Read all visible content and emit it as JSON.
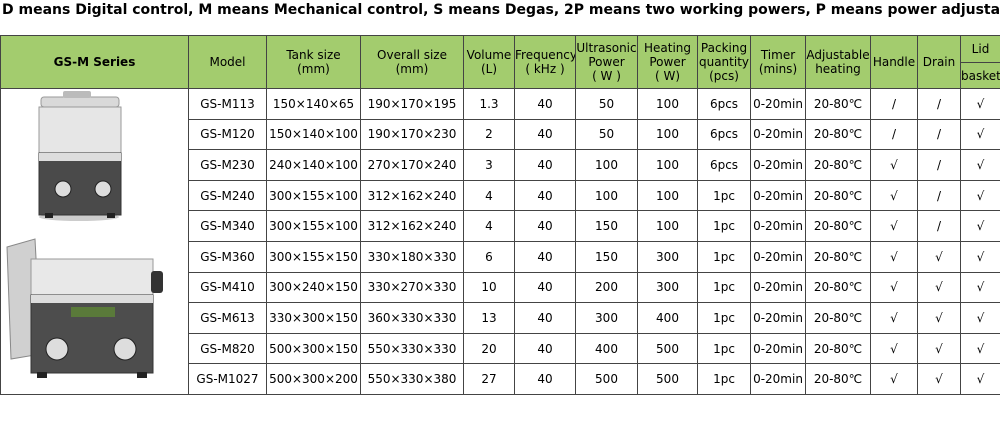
{
  "title": "D means Digital control, M means Mechanical control,   S means Degas, 2P means two working powers, P means power adjustable",
  "table": {
    "series": "GS-M  Series",
    "header": [
      [
        "Model"
      ],
      [
        "Tank size",
        "(mm)"
      ],
      [
        "Overall size",
        "(mm)"
      ],
      [
        "Volume",
        "(L)"
      ],
      [
        "Frequency",
        "( kHz )"
      ],
      [
        "Ultrasonic",
        "Power",
        "( W )"
      ],
      [
        "Heating",
        "Power",
        "( W)"
      ],
      [
        "Packing",
        "quantity",
        "(pcs)"
      ],
      [
        "Timer",
        "(mins)"
      ],
      [
        "Adjustable",
        "heating"
      ],
      [
        "Handle"
      ],
      [
        "Drain"
      ]
    ],
    "lid": "Lid",
    "basket": "basket",
    "rows": [
      [
        "GS-M113",
        "150×140×65",
        "190×170×195",
        "1.3",
        "40",
        "50",
        "100",
        "6pcs",
        "0-20min",
        "20-80℃",
        "/",
        "/",
        "√"
      ],
      [
        "GS-M120",
        "150×140×100",
        "190×170×230",
        "2",
        "40",
        "50",
        "100",
        "6pcs",
        "0-20min",
        "20-80℃",
        "/",
        "/",
        "√"
      ],
      [
        "GS-M230",
        "240×140×100",
        "270×170×240",
        "3",
        "40",
        "100",
        "100",
        "6pcs",
        "0-20min",
        "20-80℃",
        "√",
        "/",
        "√"
      ],
      [
        "GS-M240",
        "300×155×100",
        "312×162×240",
        "4",
        "40",
        "100",
        "100",
        "1pc",
        "0-20min",
        "20-80℃",
        "√",
        "/",
        "√"
      ],
      [
        "GS-M340",
        "300×155×100",
        "312×162×240",
        "4",
        "40",
        "150",
        "100",
        "1pc",
        "0-20min",
        "20-80℃",
        "√",
        "/",
        "√"
      ],
      [
        "GS-M360",
        "300×155×150",
        "330×180×330",
        "6",
        "40",
        "150",
        "300",
        "1pc",
        "0-20min",
        "20-80℃",
        "√",
        "√",
        "√"
      ],
      [
        "GS-M410",
        "300×240×150",
        "330×270×330",
        "10",
        "40",
        "200",
        "300",
        "1pc",
        "0-20min",
        "20-80℃",
        "√",
        "√",
        "√"
      ],
      [
        "GS-M613",
        "330×300×150",
        "360×330×330",
        "13",
        "40",
        "300",
        "400",
        "1pc",
        "0-20min",
        "20-80℃",
        "√",
        "√",
        "√"
      ],
      [
        "GS-M820",
        "500×300×150",
        "550×330×330",
        "20",
        "40",
        "400",
        "500",
        "1pc",
        "0-20min",
        "20-80℃",
        "√",
        "√",
        "√"
      ],
      [
        "GS-M1027",
        "500×300×200",
        "550×330×380",
        "27",
        "40",
        "500",
        "500",
        "1pc",
        "0-20min",
        "20-80℃",
        "√",
        "√",
        "√"
      ]
    ]
  }
}
